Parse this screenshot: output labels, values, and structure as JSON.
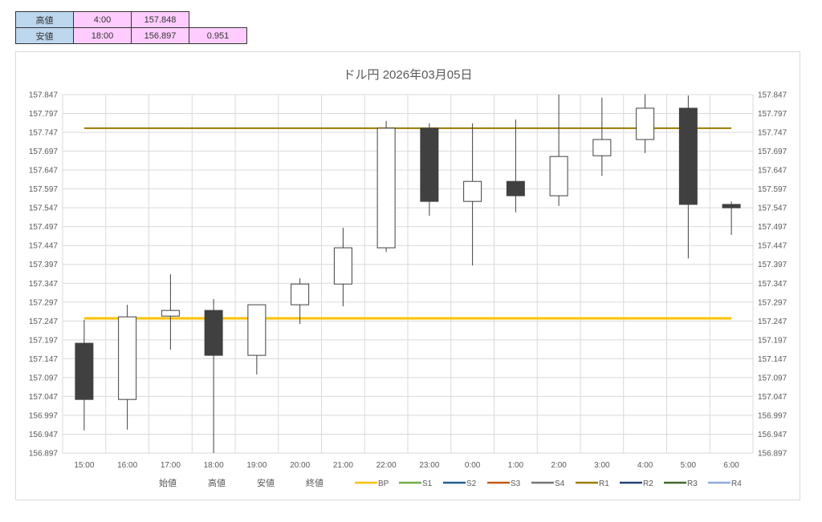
{
  "summary": {
    "rows": [
      {
        "label": "高値",
        "time": "4:00",
        "value": "157.848",
        "range": ""
      },
      {
        "label": "安値",
        "time": "18:00",
        "value": "156.897",
        "range": "0.951"
      }
    ]
  },
  "chart_data": {
    "type": "candlestick",
    "title": "ドル円  2026年03月05日",
    "categories": [
      "15:00",
      "16:00",
      "17:00",
      "18:00",
      "19:00",
      "20:00",
      "21:00",
      "22:00",
      "23:00",
      "0:00",
      "1:00",
      "2:00",
      "3:00",
      "4:00",
      "5:00",
      "6:00"
    ],
    "ohlc": [
      [
        157.188,
        157.25,
        156.957,
        157.039
      ],
      [
        157.039,
        157.29,
        156.959,
        157.258
      ],
      [
        157.26,
        157.371,
        157.171,
        157.275
      ],
      [
        157.275,
        157.305,
        156.897,
        157.156
      ],
      [
        157.156,
        157.29,
        157.105,
        157.29
      ],
      [
        157.29,
        157.36,
        157.239,
        157.345
      ],
      [
        157.345,
        157.494,
        157.286,
        157.441
      ],
      [
        157.441,
        157.777,
        157.43,
        157.758
      ],
      [
        157.758,
        157.771,
        157.526,
        157.564
      ],
      [
        157.564,
        157.771,
        157.394,
        157.617
      ],
      [
        157.617,
        157.781,
        157.535,
        157.579
      ],
      [
        157.579,
        157.847,
        157.552,
        157.683
      ],
      [
        157.685,
        157.839,
        157.632,
        157.728
      ],
      [
        157.728,
        157.848,
        157.692,
        157.811
      ],
      [
        157.811,
        157.845,
        157.413,
        157.556
      ],
      [
        157.556,
        157.564,
        157.475,
        157.547
      ]
    ],
    "lines": [
      {
        "name": "BP",
        "value": 157.254,
        "color": "#ffc000"
      },
      {
        "name": "R1",
        "value": 157.758,
        "color": "#9c7b00"
      }
    ],
    "ylim": [
      156.897,
      157.847
    ],
    "yticks": [
      "156.897",
      "156.947",
      "156.997",
      "157.047",
      "157.097",
      "157.147",
      "157.197",
      "157.247",
      "157.297",
      "157.347",
      "157.397",
      "157.447",
      "157.497",
      "157.547",
      "157.597",
      "157.647",
      "157.697",
      "157.747",
      "157.797",
      "157.847"
    ],
    "grid": true,
    "legend_position": "bottom",
    "legend": [
      {
        "name": "始値",
        "color": ""
      },
      {
        "name": "高値",
        "color": ""
      },
      {
        "name": "安値",
        "color": ""
      },
      {
        "name": "終値",
        "color": ""
      },
      {
        "name": "BP",
        "color": "#ffc000"
      },
      {
        "name": "S1",
        "color": "#70ad47"
      },
      {
        "name": "S2",
        "color": "#255e91"
      },
      {
        "name": "S3",
        "color": "#c55a11"
      },
      {
        "name": "S4",
        "color": "#757575"
      },
      {
        "name": "R1",
        "color": "#9c7b00"
      },
      {
        "name": "R2",
        "color": "#264478"
      },
      {
        "name": "R3",
        "color": "#43682b"
      },
      {
        "name": "R4",
        "color": "#8faadc"
      }
    ],
    "up_color": "#ffffff",
    "down_color": "#404040"
  }
}
